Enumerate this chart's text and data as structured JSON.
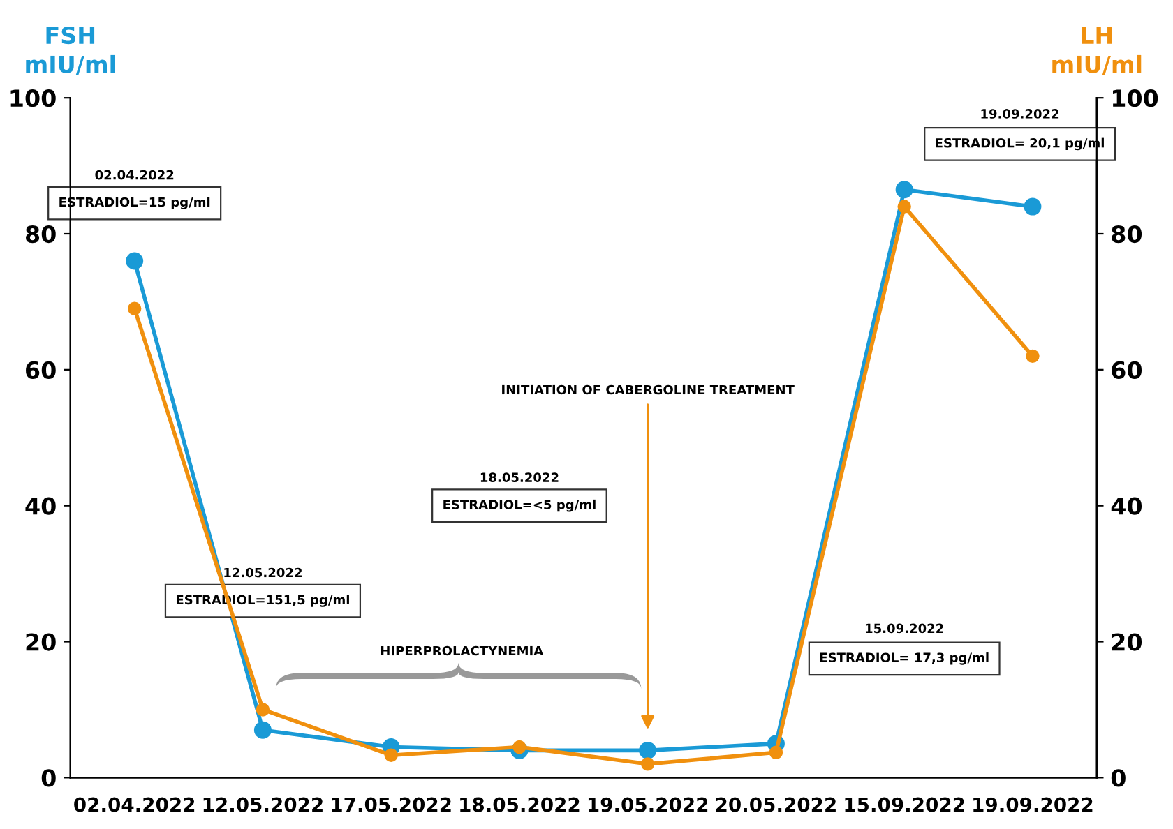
{
  "chart_data": {
    "type": "line",
    "categories": [
      "02.04.2022",
      "12.05.2022",
      "17.05.2022",
      "18.05.2022",
      "19.05.2022",
      "20.05.2022",
      "15.09.2022",
      "19.09.2022"
    ],
    "ylabel": "mIU/ml",
    "y2label": "mIU/ml",
    "series": [
      {
        "name": "FSH",
        "color": "#1a9ad6",
        "values": [
          76,
          7,
          4.5,
          4,
          4,
          5,
          86.5,
          84
        ]
      },
      {
        "name": "LH",
        "color": "#f0900e",
        "axis": "y2",
        "values": [
          69,
          10,
          3.3,
          4.5,
          2,
          3.7,
          84,
          62
        ]
      }
    ],
    "ylim": [
      0,
      100
    ],
    "yticks": [
      0,
      20,
      40,
      60,
      80,
      100
    ],
    "y2lim": [
      0,
      100
    ],
    "y2ticks": [
      0,
      20,
      40,
      60,
      80,
      100
    ],
    "marker": "circle",
    "line_style": "solid",
    "grid": false,
    "legend": false,
    "annotations": [
      "02.04.2022",
      "ESTRADIOL=15 pg/ml",
      "12.05.2022",
      "ESTRADIOL=151,5 pg/ml",
      "18.05.2022",
      "ESTRADIOL=<5 pg/ml",
      "15.09.2022",
      "ESTRADIOL= 17,3 pg/ml",
      "19.09.2022",
      "ESTRADIOL= 20,1 pg/ml",
      "INITIATION OF CABERGOLINE TREATMENT",
      "HIPERPROLACTYNEMIA"
    ]
  }
}
